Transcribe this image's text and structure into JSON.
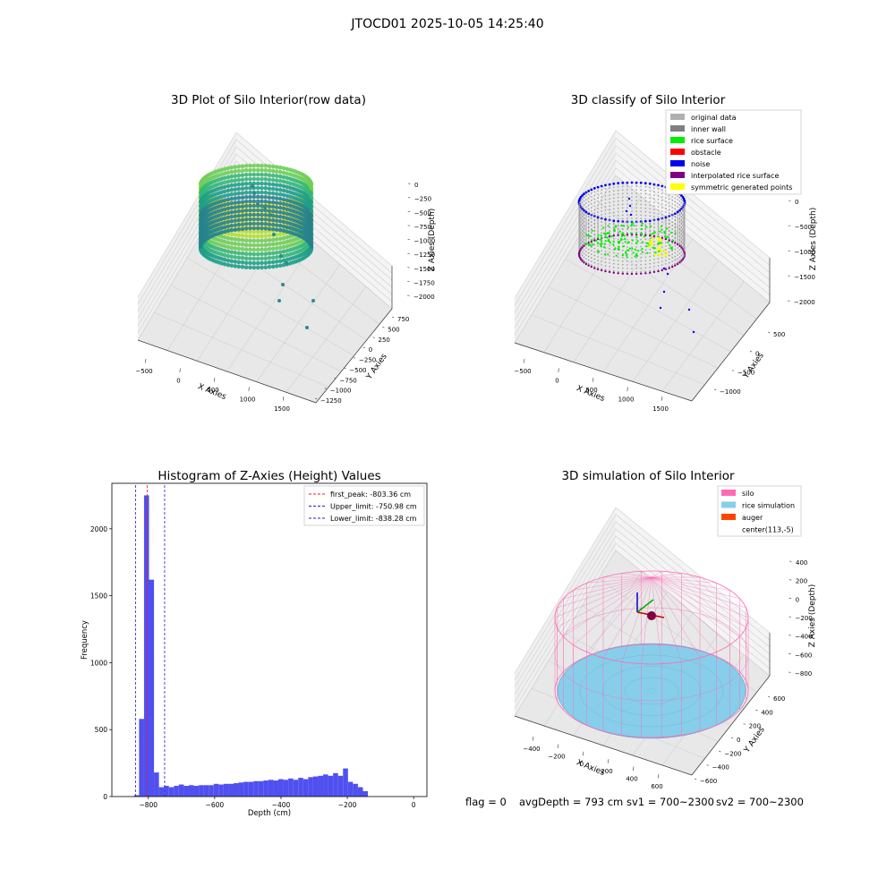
{
  "suptitle": "JTOCD01 2025-10-05 14:25:40",
  "footer": {
    "flag": "flag = 0",
    "avg_depth": "avgDepth = 793 cm",
    "sv1": "sv1 = 700~2300",
    "sv2": "sv2 = 700~2300"
  },
  "colors": {
    "histogram_bar": "#5050f0",
    "first_peak_line": "#e02020",
    "limit_lines": "#2020d0",
    "silo": "#ff69b4",
    "rice_simulation": "#87ceeb",
    "auger": "#ff4500",
    "original_data": "#b0b0b0",
    "inner_wall": "#808080",
    "rice_surface": "#00ee00",
    "obstacle": "#ff0000",
    "noise": "#0000ee",
    "interpolated_rice_surface": "#800080",
    "symmetric_generated_points": "#ffff00"
  },
  "chart_data": [
    {
      "type": "scatter",
      "title": "3D Plot of Silo Interior(row data)",
      "xlabel": "X Axies",
      "ylabel": "Y Axies",
      "zlabel": "Z Axies (Depth)",
      "x_ticks": [
        "−500",
        "0",
        "500",
        "1000",
        "1500"
      ],
      "y_ticks": [
        "750",
        "500",
        "250",
        "0",
        "−250",
        "−500",
        "−750",
        "−1000",
        "−1250"
      ],
      "z_ticks": [
        "0",
        "−250",
        "−500",
        "−750",
        "−1000",
        "−1250",
        "−1500",
        "−1750",
        "−2000"
      ],
      "colormap": "viridis"
    },
    {
      "type": "scatter",
      "title": "3D classify of Silo Interior",
      "xlabel": "X Axies",
      "ylabel": "Y Axies",
      "zlabel": "Z Axies (Depth)",
      "x_ticks": [
        "−500",
        "0",
        "500",
        "1000",
        "1500"
      ],
      "y_ticks": [
        "500",
        "0",
        "−500",
        "−1000"
      ],
      "z_ticks": [
        "0",
        "−500",
        "−1000",
        "−1500",
        "−2000"
      ],
      "legend": [
        "original data",
        "inner wall",
        "rice surface",
        "obstacle",
        "noise",
        "interpolated rice surface",
        "symmetric generated points"
      ],
      "legend_placement": "top-right"
    },
    {
      "type": "bar",
      "title": "Histogram of Z-Axies (Height) Values",
      "xlabel": "Depth (cm)",
      "ylabel": "Frequency",
      "xlim": [
        -910,
        40
      ],
      "ylim": [
        0,
        2340
      ],
      "x_ticks": [
        "−800",
        "−600",
        "−400",
        "−200",
        "0"
      ],
      "y_ticks": [
        "0",
        "500",
        "1000",
        "1500",
        "2000"
      ],
      "bin_start": -843,
      "bin_width": 15,
      "values": [
        10,
        580,
        2250,
        1620,
        180,
        70,
        80,
        70,
        80,
        90,
        80,
        85,
        80,
        85,
        85,
        85,
        95,
        90,
        95,
        95,
        100,
        105,
        110,
        110,
        115,
        115,
        120,
        125,
        120,
        130,
        125,
        135,
        125,
        140,
        130,
        145,
        150,
        155,
        165,
        155,
        175,
        155,
        210,
        110,
        95,
        70,
        40
      ],
      "lines": [
        {
          "label": "first_peak: -803.36 cm",
          "x": -803.36
        },
        {
          "label": "Upper_limit: -750.98 cm",
          "x": -750.98
        },
        {
          "label": "Lower_limit: -838.28 cm",
          "x": -838.28
        }
      ],
      "legend_placement": "top-right"
    },
    {
      "type": "scatter",
      "title": "3D simulation of Silo Interior",
      "xlabel": "X Axies",
      "ylabel": "Y Axies",
      "zlabel": "Z Axies (Depth)",
      "x_ticks": [
        "−400",
        "−200",
        "0",
        "200",
        "400",
        "600"
      ],
      "y_ticks": [
        "600",
        "400",
        "200",
        "0",
        "−200",
        "−400",
        "−600"
      ],
      "z_ticks": [
        "400",
        "200",
        "0",
        "−200",
        "−400",
        "−600",
        "−800"
      ],
      "legend": [
        "silo",
        "rice simulation",
        "auger",
        "center(113,-5)"
      ],
      "legend_placement": "top-right"
    }
  ]
}
